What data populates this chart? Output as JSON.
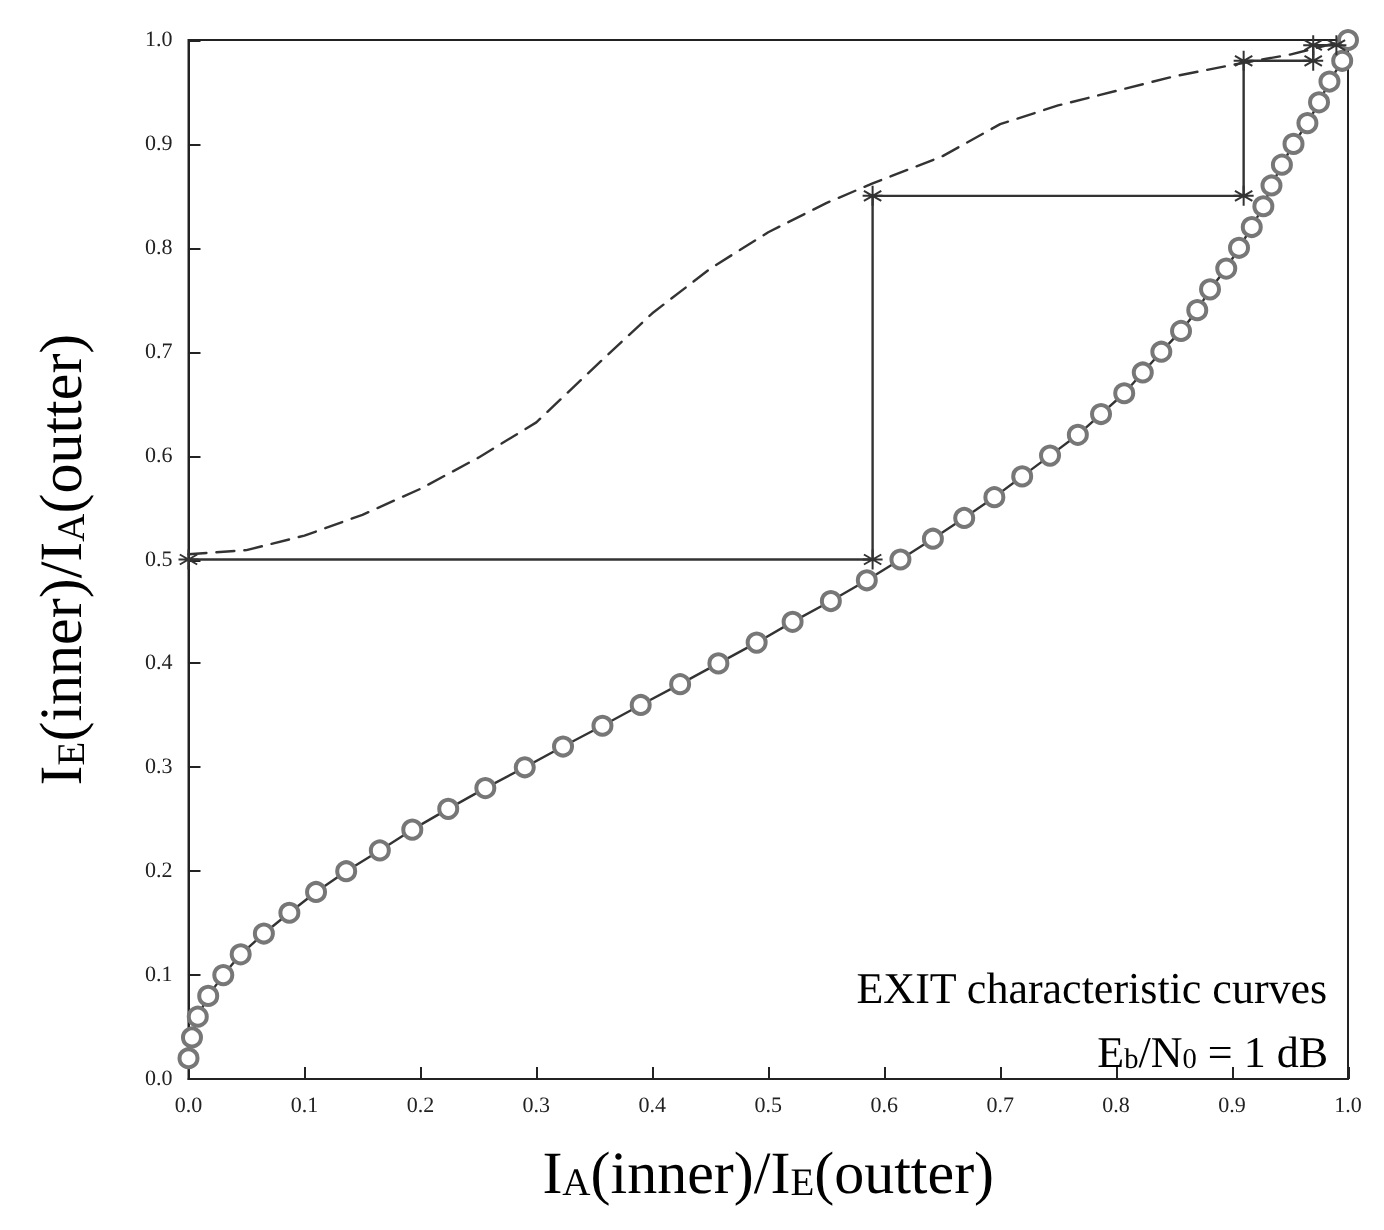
{
  "chart_data": {
    "type": "line",
    "xlabel": "I$_{A}$(inner)/I$_{E}$(outter)",
    "ylabel": "I$_{E}$(inner)/I$_{A}$(outter)",
    "annotations": [
      "EXIT characteristic curves",
      "E$_{b}$/N$_{0}$ = 1 dB"
    ],
    "xlim": [
      0,
      1
    ],
    "ylim": [
      0,
      1
    ],
    "xticks": [
      {
        "value": 0,
        "label": "0.0"
      },
      0.1,
      0.2,
      0.3,
      0.4,
      0.5,
      0.6,
      0.7,
      0.8,
      0.9,
      {
        "value": 1,
        "label": "1.0"
      }
    ],
    "yticks": [
      {
        "value": 0,
        "label": "0.0"
      },
      0.1,
      0.2,
      0.3,
      0.4,
      0.5,
      0.6,
      0.7,
      0.8,
      0.9,
      {
        "value": 1,
        "label": "1.0"
      }
    ],
    "grid": false,
    "series": [
      {
        "color": "#333333",
        "marker": "circle",
        "line_style": "solid",
        "x": [
          0,
          0.003,
          0.008,
          0.017,
          0.03,
          0.045,
          0.065,
          0.087,
          0.11,
          0.136,
          0.165,
          0.193,
          0.224,
          0.256,
          0.29,
          0.323,
          0.357,
          0.39,
          0.424,
          0.457,
          0.49,
          0.521,
          0.554,
          0.585,
          0.614,
          0.642,
          0.669,
          0.695,
          0.719,
          0.743,
          0.767,
          0.787,
          0.807,
          0.823,
          0.839,
          0.856,
          0.87,
          0.881,
          0.895,
          0.906,
          0.917,
          0.927,
          0.934,
          0.943,
          0.953,
          0.965,
          0.975,
          0.984,
          0.995,
          1.0
        ],
        "values": [
          0.02,
          0.04,
          0.06,
          0.08,
          0.1,
          0.12,
          0.14,
          0.16,
          0.18,
          0.2,
          0.22,
          0.24,
          0.26,
          0.28,
          0.3,
          0.32,
          0.34,
          0.36,
          0.38,
          0.4,
          0.42,
          0.44,
          0.46,
          0.48,
          0.5,
          0.52,
          0.54,
          0.56,
          0.58,
          0.6,
          0.62,
          0.64,
          0.66,
          0.68,
          0.7,
          0.72,
          0.74,
          0.76,
          0.78,
          0.8,
          0.82,
          0.84,
          0.86,
          0.88,
          0.9,
          0.92,
          0.94,
          0.96,
          0.98,
          1.0
        ]
      },
      {
        "color": "#333333",
        "marker": "none",
        "line_style": "dashed",
        "x": [
          0,
          0.05,
          0.1,
          0.15,
          0.2,
          0.25,
          0.3,
          0.35,
          0.4,
          0.45,
          0.5,
          0.55,
          0.59,
          0.65,
          0.7,
          0.75,
          0.8,
          0.85,
          0.9,
          0.95,
          1.0
        ],
        "values": [
          0.505,
          0.509,
          0.523,
          0.543,
          0.568,
          0.598,
          0.632,
          0.685,
          0.737,
          0.78,
          0.815,
          0.843,
          0.862,
          0.888,
          0.919,
          0.937,
          0.951,
          0.965,
          0.976,
          0.986,
          1.0
        ]
      },
      {
        "color": "#333333",
        "marker": "cross",
        "line_style": "solid",
        "x": [
          0,
          0.59,
          0.59,
          0.91,
          0.91,
          0.97,
          0.97,
          0.99
        ],
        "values": [
          0.5,
          0.5,
          0.85,
          0.85,
          0.98,
          0.98,
          0.995,
          0.995
        ]
      }
    ]
  }
}
